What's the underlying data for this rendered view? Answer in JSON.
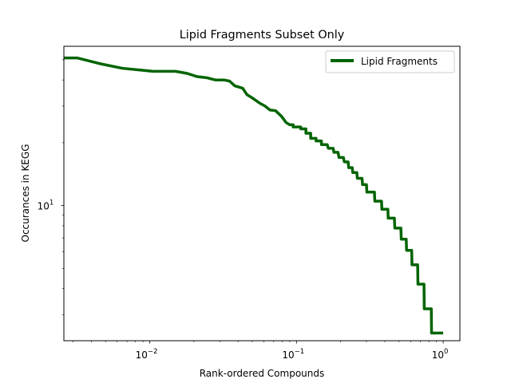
{
  "chart_data": {
    "type": "line",
    "title": "Lipid Fragments Subset Only",
    "xlabel": "Rank-ordered Compounds",
    "ylabel": "Occurances in KEGG",
    "x_scale": "log",
    "y_scale": "log",
    "xlim": [
      0.0026,
      1.3
    ],
    "ylim": [
      2.25,
      58
    ],
    "x_ticks": [
      {
        "value": 0.01,
        "base": "10",
        "exp": "−2"
      },
      {
        "value": 0.1,
        "base": "10",
        "exp": "−1"
      },
      {
        "value": 1,
        "base": "10",
        "exp": "0"
      }
    ],
    "y_ticks": [
      {
        "value": 10,
        "base": "10",
        "exp": "1"
      }
    ],
    "grid": false,
    "legend_position": "upper right",
    "series": [
      {
        "name": "Lipid Fragments",
        "color": "#006400",
        "points": [
          [
            0.0026,
            51
          ],
          [
            0.0032,
            51
          ],
          [
            0.0045,
            48
          ],
          [
            0.0065,
            45.5
          ],
          [
            0.009,
            44.5
          ],
          [
            0.0105,
            44
          ],
          [
            0.015,
            44
          ],
          [
            0.018,
            43
          ],
          [
            0.021,
            41.5
          ],
          [
            0.0245,
            41
          ],
          [
            0.028,
            40
          ],
          [
            0.032,
            40
          ],
          [
            0.035,
            39.5
          ],
          [
            0.038,
            37.5
          ],
          [
            0.043,
            36.5
          ],
          [
            0.046,
            34
          ],
          [
            0.051,
            32.5
          ],
          [
            0.056,
            31
          ],
          [
            0.061,
            30
          ],
          [
            0.066,
            28.7
          ],
          [
            0.072,
            28.5
          ],
          [
            0.079,
            26.8
          ],
          [
            0.085,
            25
          ],
          [
            0.09,
            24.4
          ],
          [
            0.095,
            24.4
          ],
          [
            0.095,
            23.8
          ],
          [
            0.107,
            23.8
          ],
          [
            0.107,
            23.3
          ],
          [
            0.116,
            23.3
          ],
          [
            0.116,
            22.2
          ],
          [
            0.125,
            22.2
          ],
          [
            0.125,
            21
          ],
          [
            0.136,
            21
          ],
          [
            0.136,
            20.4
          ],
          [
            0.148,
            20.4
          ],
          [
            0.148,
            19.6
          ],
          [
            0.162,
            19.6
          ],
          [
            0.165,
            18.8
          ],
          [
            0.178,
            18.8
          ],
          [
            0.18,
            18
          ],
          [
            0.192,
            18
          ],
          [
            0.195,
            17
          ],
          [
            0.209,
            17
          ],
          [
            0.212,
            16.2
          ],
          [
            0.225,
            16.2
          ],
          [
            0.227,
            15.2
          ],
          [
            0.24,
            15.2
          ],
          [
            0.242,
            14.4
          ],
          [
            0.258,
            14.4
          ],
          [
            0.26,
            13.5
          ],
          [
            0.28,
            13.5
          ],
          [
            0.282,
            12.6
          ],
          [
            0.3,
            12.6
          ],
          [
            0.302,
            11.6
          ],
          [
            0.34,
            11.6
          ],
          [
            0.342,
            10.5
          ],
          [
            0.38,
            10.5
          ],
          [
            0.382,
            9.6
          ],
          [
            0.42,
            9.6
          ],
          [
            0.422,
            8.7
          ],
          [
            0.465,
            8.7
          ],
          [
            0.468,
            7.8
          ],
          [
            0.515,
            7.8
          ],
          [
            0.518,
            6.9
          ],
          [
            0.56,
            6.9
          ],
          [
            0.563,
            6.1
          ],
          [
            0.61,
            6.1
          ],
          [
            0.613,
            5.2
          ],
          [
            0.67,
            5.2
          ],
          [
            0.673,
            4.2
          ],
          [
            0.74,
            4.2
          ],
          [
            0.743,
            3.2
          ],
          [
            0.83,
            3.2
          ],
          [
            0.833,
            2.45
          ],
          [
            1.0,
            2.45
          ]
        ]
      }
    ]
  }
}
